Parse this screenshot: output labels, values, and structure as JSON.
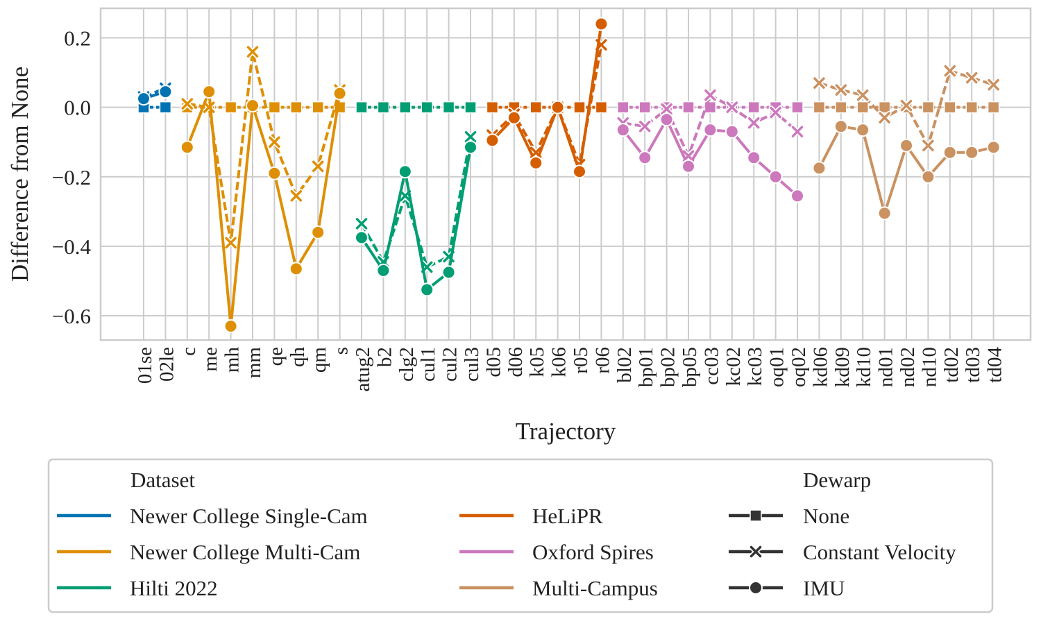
{
  "chart_data": {
    "type": "line",
    "xlabel": "Trajectory",
    "ylabel": "Difference from None",
    "ylim": [
      -0.67,
      0.285
    ],
    "yticks": [
      0.2,
      0.0,
      -0.2,
      -0.4,
      -0.6
    ],
    "ytick_labels": [
      "0.2",
      "0.0",
      "−0.2",
      "−0.4",
      "−0.6"
    ],
    "grid": true,
    "categories": [
      "01se",
      "02le",
      "c",
      "me",
      "mh",
      "mm",
      "qe",
      "qh",
      "qm",
      "s",
      "atug2",
      "b2",
      "clg2",
      "cul1",
      "cul2",
      "cul3",
      "d05",
      "d06",
      "k05",
      "k06",
      "r05",
      "r06",
      "bl02",
      "bp01",
      "bp02",
      "bp05",
      "cc03",
      "kc02",
      "kc03",
      "oq01",
      "oq02",
      "kd06",
      "kd09",
      "kd10",
      "nd01",
      "nd02",
      "nd10",
      "td02",
      "td03",
      "td04"
    ],
    "legend": {
      "placement": "bottom",
      "dataset_title": "Dataset",
      "dewarp_title": "Dewarp",
      "dewarp_entries": [
        {
          "label": "None",
          "marker": "square"
        },
        {
          "label": "Constant Velocity",
          "marker": "x"
        },
        {
          "label": "IMU",
          "marker": "circle"
        }
      ]
    },
    "series": [
      {
        "name": "Newer College Single-Cam",
        "color": "#0173b2",
        "start": 0,
        "none": [
          0,
          0
        ],
        "cv": [
          0.03,
          0.055
        ],
        "imu": [
          0.025,
          0.045
        ]
      },
      {
        "name": "Newer College Multi-Cam",
        "color": "#de8f05",
        "start": 2,
        "none": [
          0,
          0,
          0,
          0,
          0,
          0,
          0,
          0
        ],
        "cv": [
          0.01,
          0.0,
          -0.39,
          0.16,
          -0.1,
          -0.255,
          -0.17,
          0.05
        ],
        "imu": [
          -0.115,
          0.045,
          -0.63,
          0.005,
          -0.19,
          -0.465,
          -0.36,
          0.04
        ]
      },
      {
        "name": "Hilti 2022",
        "color": "#029e73",
        "start": 10,
        "none": [
          0,
          0,
          0,
          0,
          0,
          0
        ],
        "cv": [
          -0.335,
          -0.445,
          -0.255,
          -0.46,
          -0.43,
          -0.085
        ],
        "imu": [
          -0.375,
          -0.47,
          -0.185,
          -0.525,
          -0.475,
          -0.115
        ]
      },
      {
        "name": "HeLiPR",
        "color": "#d55e00",
        "start": 16,
        "none": [
          0,
          0,
          0,
          0,
          0,
          0
        ],
        "cv": [
          -0.08,
          -0.02,
          -0.13,
          0.0,
          -0.165,
          0.18
        ],
        "imu": [
          -0.095,
          -0.03,
          -0.16,
          0.0,
          -0.185,
          0.24
        ]
      },
      {
        "name": "Oxford Spires",
        "color": "#cc78bc",
        "start": 22,
        "none": [
          0,
          0,
          0,
          0,
          0,
          0,
          0,
          0,
          0
        ],
        "cv": [
          -0.045,
          -0.055,
          -0.005,
          -0.14,
          0.035,
          0.0,
          -0.045,
          -0.015,
          -0.07
        ],
        "imu": [
          -0.065,
          -0.145,
          -0.035,
          -0.17,
          -0.065,
          -0.07,
          -0.145,
          -0.2,
          -0.255
        ]
      },
      {
        "name": "Multi-Campus",
        "color": "#ca9161",
        "start": 31,
        "none": [
          0,
          0,
          0,
          0,
          0,
          0,
          0,
          0,
          0
        ],
        "cv": [
          0.07,
          0.05,
          0.035,
          -0.03,
          0.005,
          -0.11,
          0.105,
          0.085,
          0.065
        ],
        "imu": [
          -0.175,
          -0.055,
          -0.065,
          -0.305,
          -0.11,
          -0.2,
          -0.13,
          -0.13,
          -0.115
        ]
      }
    ]
  }
}
